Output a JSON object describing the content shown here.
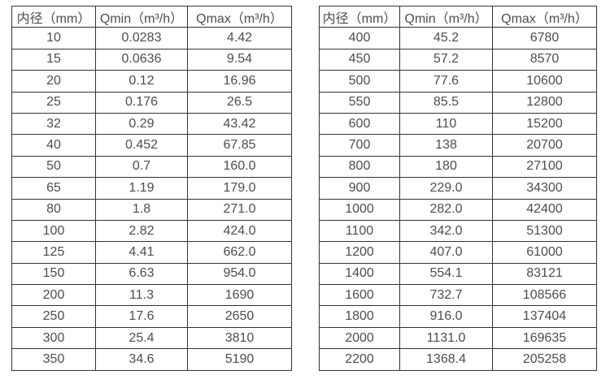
{
  "page": {
    "background_color": "#ffffff",
    "text_color": "#4d4d4d",
    "border_color": "#333333"
  },
  "tables": [
    {
      "name": "flow-table-small-diameters",
      "headers": [
        "内径（mm）",
        "Qmin（m³/h）",
        "Qmax（m³/h）"
      ],
      "rows": [
        [
          "10",
          "0.0283",
          "4.42"
        ],
        [
          "15",
          "0.0636",
          "9.54"
        ],
        [
          "20",
          "0.12",
          "16.96"
        ],
        [
          "25",
          "0.176",
          "26.5"
        ],
        [
          "32",
          "0.29",
          "43.42"
        ],
        [
          "40",
          "0.452",
          "67.85"
        ],
        [
          "50",
          "0.7",
          "160.0"
        ],
        [
          "65",
          "1.19",
          "179.0"
        ],
        [
          "80",
          "1.8",
          "271.0"
        ],
        [
          "100",
          "2.82",
          "424.0"
        ],
        [
          "125",
          "4.41",
          "662.0"
        ],
        [
          "150",
          "6.63",
          "954.0"
        ],
        [
          "200",
          "11.3",
          "1690"
        ],
        [
          "250",
          "17.6",
          "2650"
        ],
        [
          "300",
          "25.4",
          "3810"
        ],
        [
          "350",
          "34.6",
          "5190"
        ]
      ]
    },
    {
      "name": "flow-table-large-diameters",
      "headers": [
        "内径（mm）",
        "Qmin（m³/h）",
        "Qmax（m³/h）"
      ],
      "rows": [
        [
          "400",
          "45.2",
          "6780"
        ],
        [
          "450",
          "57.2",
          "8570"
        ],
        [
          "500",
          "77.6",
          "10600"
        ],
        [
          "550",
          "85.5",
          "12800"
        ],
        [
          "600",
          "110",
          "15200"
        ],
        [
          "700",
          "138",
          "20700"
        ],
        [
          "800",
          "180",
          "27100"
        ],
        [
          "900",
          "229.0",
          "34300"
        ],
        [
          "1000",
          "282.0",
          "42400"
        ],
        [
          "1100",
          "342.0",
          "51300"
        ],
        [
          "1200",
          "407.0",
          "61000"
        ],
        [
          "1400",
          "554.1",
          "83121"
        ],
        [
          "1600",
          "732.7",
          "108566"
        ],
        [
          "1800",
          "916.0",
          "137404"
        ],
        [
          "2000",
          "1131.0",
          "169635"
        ],
        [
          "2200",
          "1368.4",
          "205258"
        ]
      ]
    }
  ]
}
